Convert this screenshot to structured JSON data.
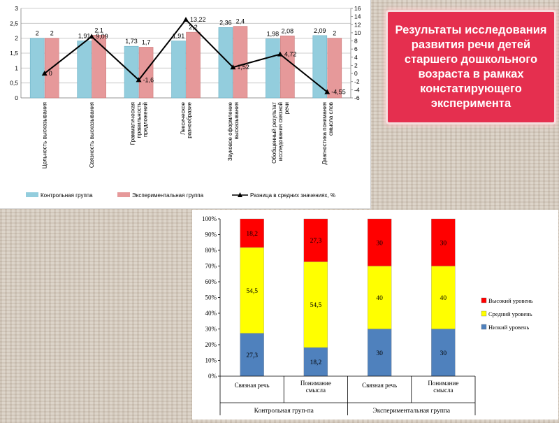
{
  "title_box": {
    "text": "Результаты исследования развития речи детей старшего дошкольного возраста в рамках констатирующего эксперимента"
  },
  "chart_data": [
    {
      "type": "bar",
      "categories": [
        "Цельность высказывания",
        "Связность высказывания",
        "Грамматическая правильность предложений",
        "Лексическое разнообразие",
        "Звуковое оформление высказывания",
        "Обобщенный результат исследования связной речи",
        "Диагностика понимания смысла слов"
      ],
      "category_labels_display": [
        [
          "Цельность высказывания"
        ],
        [
          "Связность высказывания"
        ],
        [
          "Грамматическая",
          "правильность",
          "предложений"
        ],
        [
          "Лексическое",
          "разнообразие"
        ],
        [
          "Звуковое оформление",
          "высказывания"
        ],
        [
          "Обобщенный результат",
          "исследования связной",
          "речи"
        ],
        [
          "Диагностика понимания",
          "смысла слов"
        ]
      ],
      "series": [
        {
          "name": "Контрольная группа",
          "type": "bar",
          "axis": "left",
          "color": "#93cddd",
          "values": [
            2,
            1.91,
            1.73,
            1.91,
            2.36,
            1.98,
            2.09
          ],
          "labels": [
            "2",
            "1,91",
            "1,73",
            "1,91",
            "2,36",
            "1,98",
            "2,09"
          ]
        },
        {
          "name": "Экспериментальная группа",
          "type": "bar",
          "axis": "left",
          "color": "#e6999a",
          "values": [
            2,
            2.1,
            1.7,
            2.2,
            2.4,
            2.08,
            2
          ],
          "labels": [
            "2",
            "2,1",
            "1,7",
            "2,2",
            "2,4",
            "2,08",
            "2"
          ]
        },
        {
          "name": "Разница в средних значениях, %",
          "type": "line",
          "axis": "right",
          "color": "#000000",
          "values": [
            0,
            9.09,
            -1.6,
            13.22,
            1.52,
            4.72,
            -4.55
          ],
          "labels": [
            "0",
            "9,09",
            "-1,6",
            "13,22",
            "1,52",
            "4,72",
            "-4,55"
          ]
        }
      ],
      "ylim": [
        0,
        3
      ],
      "yticks": [
        "0",
        "0,5",
        "1",
        "1,5",
        "2",
        "2,5",
        "3"
      ],
      "y2lim": [
        -6,
        16
      ],
      "y2ticks": [
        "-6",
        "-4",
        "-2",
        "0",
        "2",
        "4",
        "6",
        "8",
        "10",
        "12",
        "14",
        "16"
      ],
      "grid": true,
      "legend": "bottom"
    },
    {
      "type": "bar",
      "stacked": "percent",
      "categories": [
        "Связная речь",
        "Понимание смысла",
        "Связная речь",
        "Понимание смысла"
      ],
      "category_labels_display": [
        [
          "Связная речь"
        ],
        [
          "Понимание",
          "смысла"
        ],
        [
          "Связная речь"
        ],
        [
          "Понимание",
          "смысла"
        ]
      ],
      "groups": [
        {
          "label": "Контрольная груп-па",
          "span": 2
        },
        {
          "label": "Экспериментальная группа",
          "span": 2
        }
      ],
      "series": [
        {
          "name": "Низкий уровень",
          "color": "#4f81bd",
          "values": [
            27.3,
            18.2,
            30,
            30
          ],
          "labels": [
            "27,3",
            "18,2",
            "30",
            "30"
          ]
        },
        {
          "name": "Средний уровень",
          "color": "#ffff00",
          "values": [
            54.5,
            54.5,
            40,
            40
          ],
          "labels": [
            "54,5",
            "54,5",
            "40",
            "40"
          ]
        },
        {
          "name": "Высокий уровень",
          "color": "#ff0000",
          "values": [
            18.2,
            27.3,
            30,
            30
          ],
          "labels": [
            "18,2",
            "27,3",
            "30",
            "30"
          ]
        }
      ],
      "yticks": [
        "0%",
        "10%",
        "20%",
        "30%",
        "40%",
        "50%",
        "60%",
        "70%",
        "80%",
        "90%",
        "100%"
      ],
      "ylim": [
        0,
        100
      ],
      "grid": false,
      "legend": "right"
    }
  ]
}
